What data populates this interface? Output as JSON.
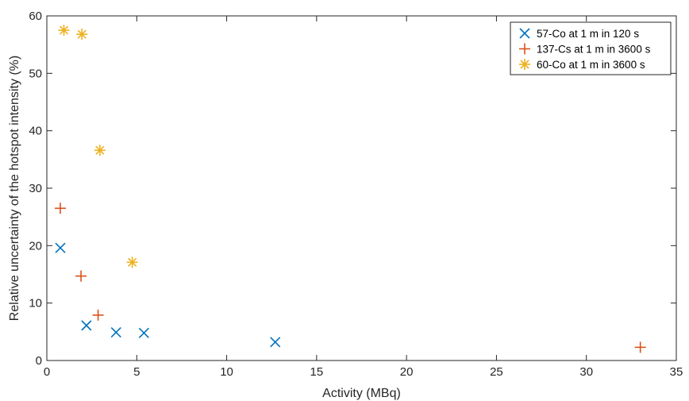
{
  "chart_data": {
    "type": "scatter",
    "title": "",
    "xlabel": "Activity (MBq)",
    "ylabel": "Relative uncertainty of the hotspot intensity (%)",
    "xlim": [
      0,
      35
    ],
    "ylim": [
      0,
      60
    ],
    "xticks": [
      0,
      5,
      10,
      15,
      20,
      25,
      30,
      35
    ],
    "yticks": [
      0,
      10,
      20,
      30,
      40,
      50,
      60
    ],
    "grid": false,
    "legend_position": "top-right",
    "series": [
      {
        "name": "57-Co at 1 m in 120 s",
        "marker": "x",
        "color": "#0072BD",
        "points": [
          [
            0.75,
            19.6
          ],
          [
            2.2,
            6.1
          ],
          [
            3.85,
            4.9
          ],
          [
            5.4,
            4.8
          ],
          [
            12.7,
            3.2
          ]
        ]
      },
      {
        "name": "137-Cs at 1 m in 3600 s",
        "marker": "+",
        "color": "#D95319",
        "points": [
          [
            0.75,
            26.5
          ],
          [
            1.9,
            14.7
          ],
          [
            2.85,
            7.9
          ],
          [
            33.0,
            2.3
          ]
        ]
      },
      {
        "name": "60-Co at 1 m in 3600 s",
        "marker": "*",
        "color": "#EDB120",
        "points": [
          [
            0.95,
            57.5
          ],
          [
            1.95,
            56.8
          ],
          [
            2.95,
            36.6
          ],
          [
            4.75,
            17.1
          ]
        ]
      }
    ]
  }
}
